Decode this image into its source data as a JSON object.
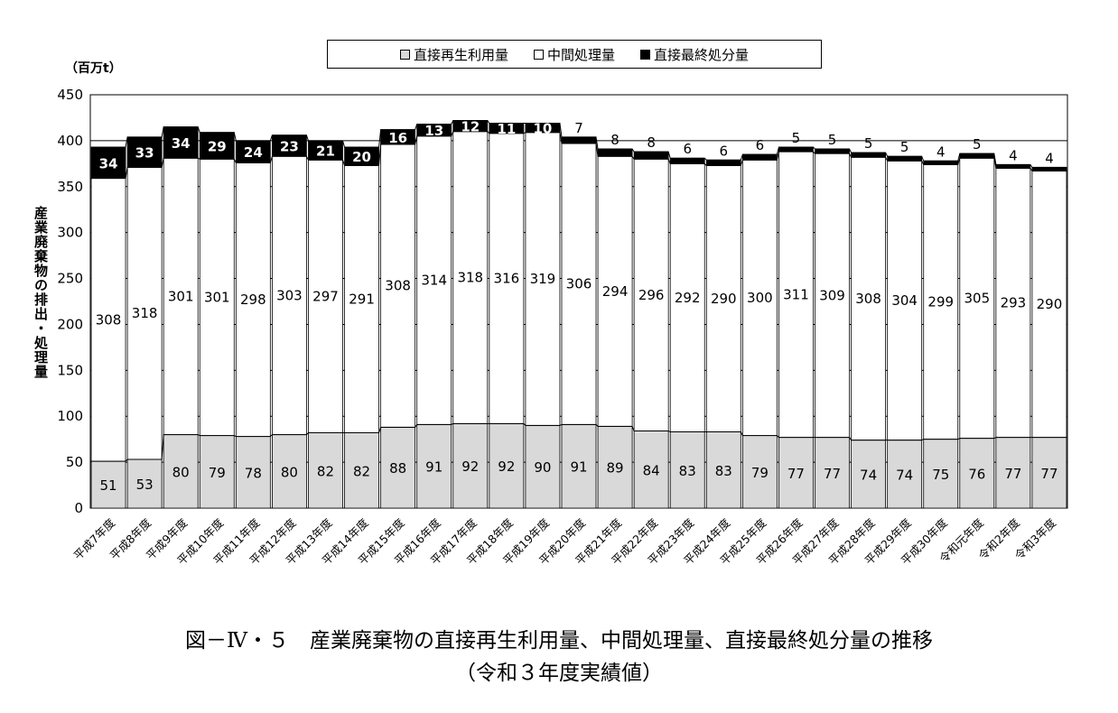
{
  "chart_data": {
    "type": "bar",
    "stacked": true,
    "unit_label": "（百万t）",
    "ylabel": "産業廃棄物の排出・処理量",
    "ylim": [
      0,
      450
    ],
    "yticks": [
      0,
      50,
      100,
      150,
      200,
      250,
      300,
      350,
      400,
      450
    ],
    "grid": true,
    "legend_position": "top",
    "categories": [
      "平成7年度",
      "平成8年度",
      "平成9年度",
      "平成10年度",
      "平成11年度",
      "平成12年度",
      "平成13年度",
      "平成14年度",
      "平成15年度",
      "平成16年度",
      "平成17年度",
      "平成18年度",
      "平成19年度",
      "平成20年度",
      "平成21年度",
      "平成22年度",
      "平成23年度",
      "平成24年度",
      "平成25年度",
      "平成26年度",
      "平成27年度",
      "平成28年度",
      "平成29年度",
      "平成30年度",
      "令和元年度",
      "令和2年度",
      "令和3年度"
    ],
    "series": [
      {
        "name": "直接再生利用量",
        "color": "#d9d9d9",
        "values": [
          51,
          53,
          80,
          79,
          78,
          80,
          82,
          82,
          88,
          91,
          92,
          92,
          90,
          91,
          89,
          84,
          83,
          83,
          79,
          77,
          77,
          74,
          74,
          75,
          76,
          77,
          77
        ]
      },
      {
        "name": "中間処理量",
        "color": "#ffffff",
        "values": [
          308,
          318,
          301,
          301,
          298,
          303,
          297,
          291,
          308,
          314,
          318,
          316,
          319,
          306,
          294,
          296,
          292,
          290,
          300,
          311,
          309,
          308,
          304,
          299,
          305,
          293,
          290
        ]
      },
      {
        "name": "直接最終処分量",
        "color": "#000000",
        "values": [
          34,
          33,
          34,
          29,
          24,
          23,
          21,
          20,
          16,
          13,
          12,
          11,
          10,
          7,
          8,
          8,
          6,
          6,
          6,
          5,
          5,
          5,
          5,
          4,
          5,
          4,
          4
        ]
      }
    ]
  },
  "caption": {
    "line1": "図－Ⅳ・５　産業廃棄物の直接再生利用量、中間処理量、直接最終処分量の推移",
    "line2": "（令和３年度実績値）"
  }
}
